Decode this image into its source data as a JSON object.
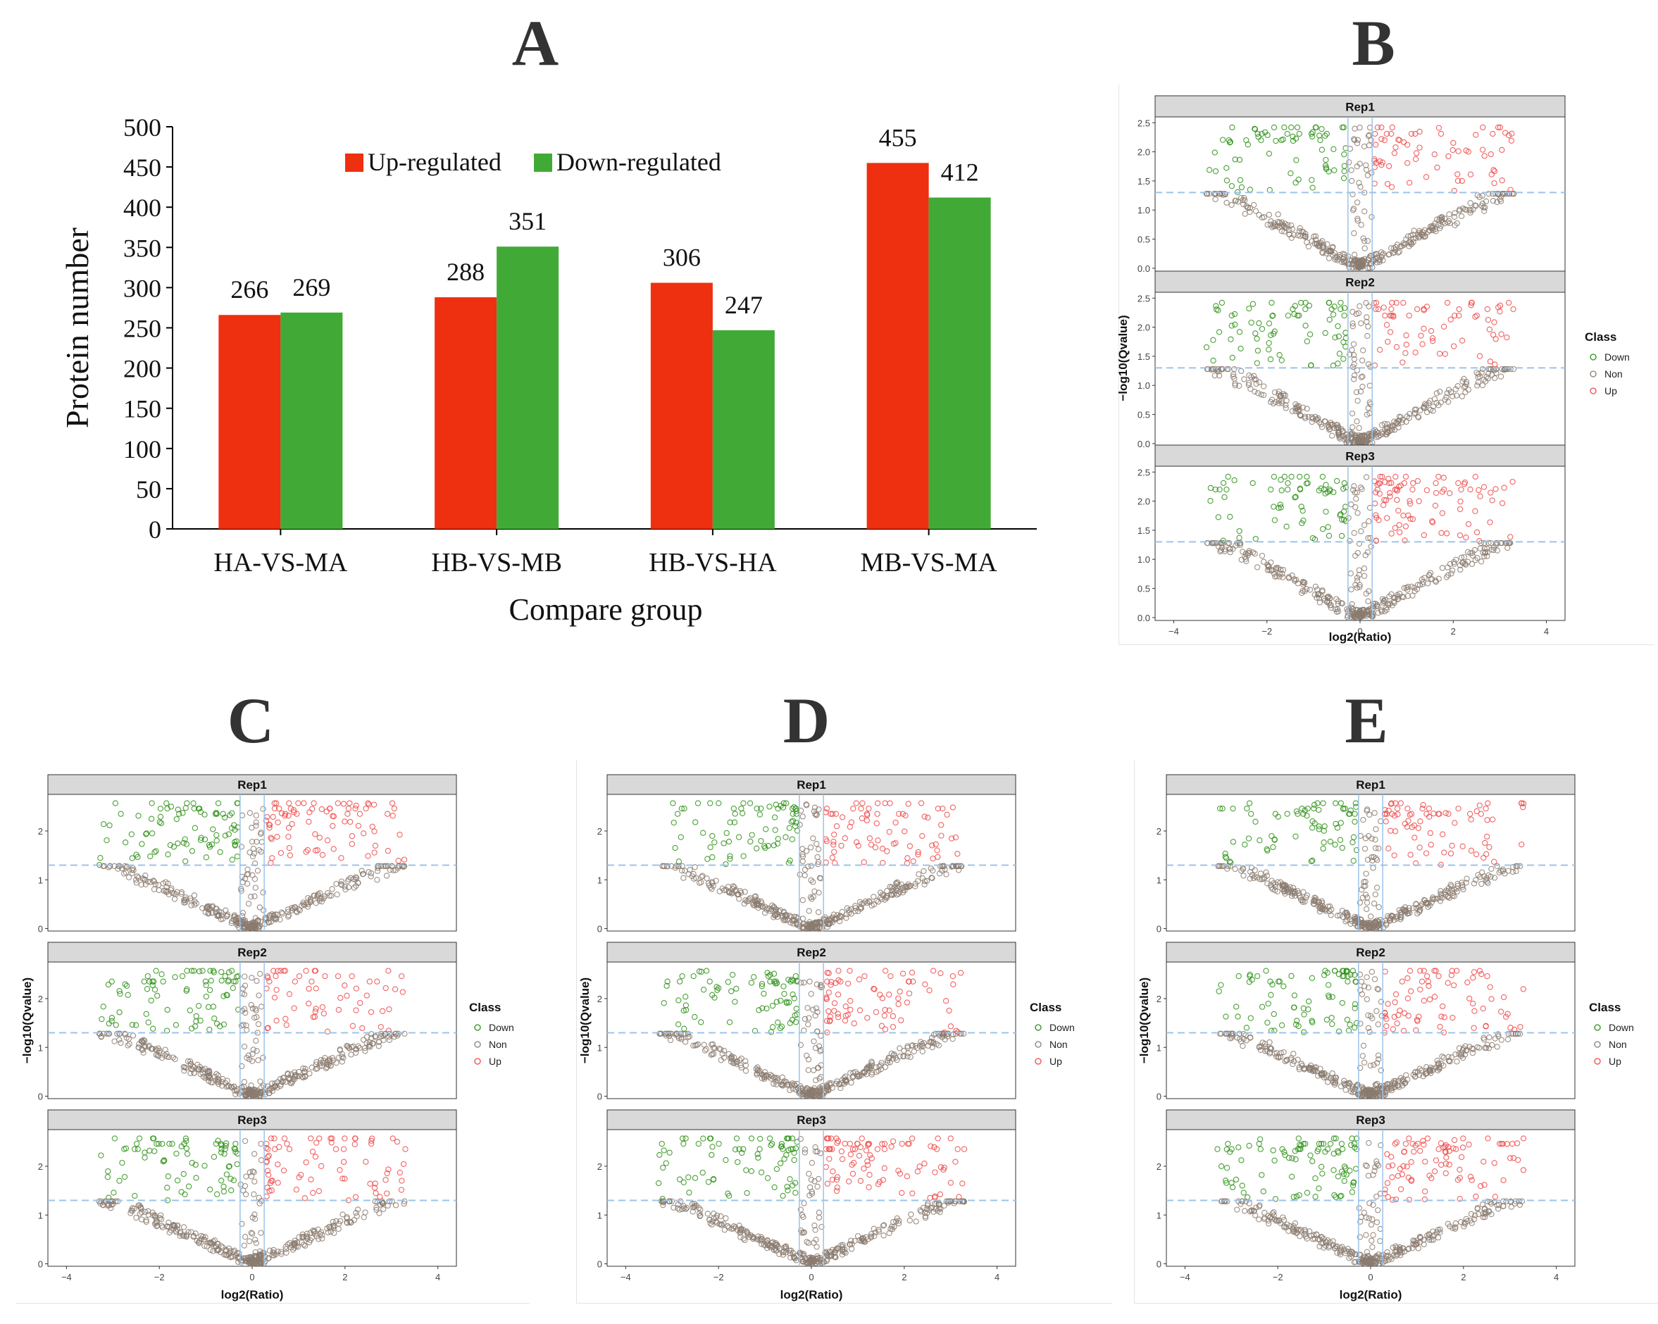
{
  "panels": {
    "A": "A",
    "B": "B",
    "C": "C",
    "D": "D",
    "E": "E"
  },
  "colors": {
    "up": "#EE2F10",
    "down": "#41AA37",
    "strip": "#D9D9D9",
    "non": "#8B7B70",
    "pt_down": "#2B8F14",
    "pt_up": "#F04848",
    "threshold": "#9CC3EA"
  },
  "chart_data": [
    {
      "panel": "A",
      "type": "bar",
      "categories": [
        "HA-VS-MA",
        "HB-VS-MB",
        "HB-VS-HA",
        "MB-VS-MA"
      ],
      "series": [
        {
          "name": "Up-regulated",
          "values": [
            266,
            288,
            306,
            455
          ]
        },
        {
          "name": "Down-regulated",
          "values": [
            269,
            351,
            247,
            412
          ]
        }
      ],
      "xlabel": "Compare group",
      "ylabel": "Protein number",
      "ylim": [
        0,
        500
      ],
      "yticks": [
        "0",
        "50",
        "100",
        "150",
        "200",
        "250",
        "300",
        "350",
        "400",
        "450",
        "500"
      ],
      "legend": "top"
    },
    {
      "panel": "B",
      "type": "scatter",
      "facets": [
        "Rep1",
        "Rep2",
        "Rep3"
      ],
      "xlabel": "log2(Ratio)",
      "ylabel": "-log10(Qvalue)",
      "xlim": [
        -4.4,
        4.4
      ],
      "ylim": [
        -0.05,
        2.6
      ],
      "xticks": [
        "-4",
        "-2",
        "0",
        "2",
        "4"
      ],
      "yticks": [
        "0.0",
        "0.5",
        "1.0",
        "1.5",
        "2.0",
        "2.5"
      ],
      "thresholds": {
        "y": 1.3,
        "x": [
          -0.26,
          0.26
        ]
      },
      "legend_title": "Class",
      "classes": [
        "Down",
        "Non",
        "Up"
      ]
    },
    {
      "panel": "C",
      "type": "scatter",
      "facets": [
        "Rep1",
        "Rep2",
        "Rep3"
      ],
      "xlabel": "log2(Ratio)",
      "ylabel": "-log10(Qvalue)",
      "xlim": [
        -4.4,
        4.4
      ],
      "ylim": [
        -0.05,
        2.75
      ],
      "xticks": [
        "-4",
        "-2",
        "0",
        "2",
        "4"
      ],
      "yticks": [
        "0",
        "1",
        "2"
      ],
      "thresholds": {
        "y": 1.3,
        "x": [
          -0.26,
          0.26
        ]
      },
      "legend_title": "Class",
      "classes": [
        "Down",
        "Non",
        "Up"
      ]
    },
    {
      "panel": "D",
      "type": "scatter",
      "facets": [
        "Rep1",
        "Rep2",
        "Rep3"
      ],
      "xlabel": "log2(Ratio)",
      "ylabel": "-log10(Qvalue)",
      "xlim": [
        -4.4,
        4.4
      ],
      "ylim": [
        -0.05,
        2.75
      ],
      "xticks": [
        "-4",
        "-2",
        "0",
        "2",
        "4"
      ],
      "yticks": [
        "0",
        "1",
        "2"
      ],
      "thresholds": {
        "y": 1.3,
        "x": [
          -0.26,
          0.26
        ]
      },
      "legend_title": "Class",
      "classes": [
        "Down",
        "Non",
        "Up"
      ]
    },
    {
      "panel": "E",
      "type": "scatter",
      "facets": [
        "Rep1",
        "Rep2",
        "Rep3"
      ],
      "xlabel": "log2(Ratio)",
      "ylabel": "-log10(Qvalue)",
      "xlim": [
        -4.4,
        4.4
      ],
      "ylim": [
        -0.05,
        2.75
      ],
      "xticks": [
        "-4",
        "-2",
        "0",
        "2",
        "4"
      ],
      "yticks": [
        "0",
        "1",
        "2"
      ],
      "thresholds": {
        "y": 1.3,
        "x": [
          -0.26,
          0.26
        ]
      },
      "legend_title": "Class",
      "classes": [
        "Down",
        "Non",
        "Up"
      ]
    }
  ]
}
